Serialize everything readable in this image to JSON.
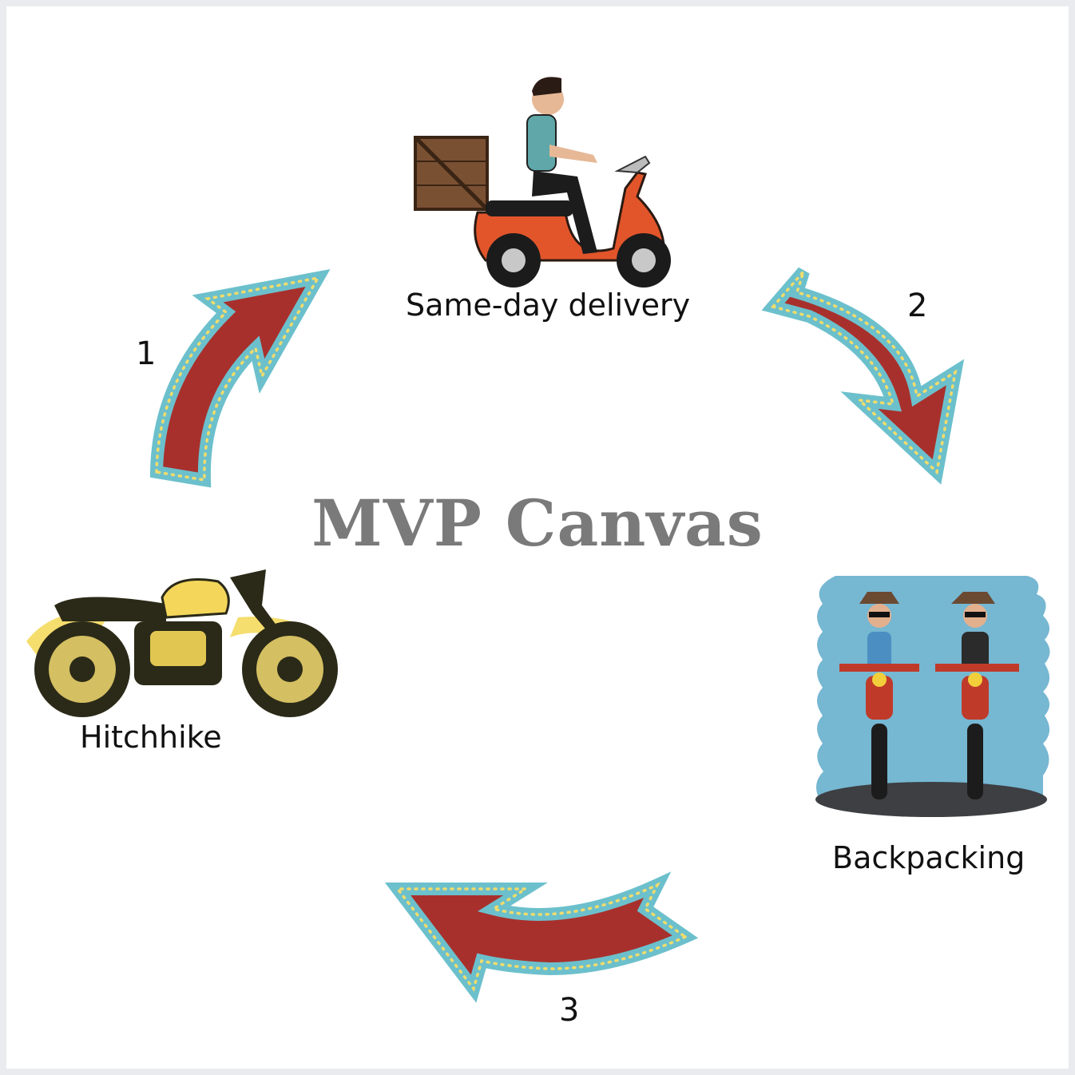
{
  "title": "MVP Canvas",
  "steps": {
    "top": {
      "label": "Same-day delivery",
      "icon": "delivery-scooter-illustration"
    },
    "right": {
      "label": "Backpacking",
      "icon": "bikers-couple-illustration"
    },
    "left": {
      "label": "Hitchhike",
      "icon": "yellow-motorcycle-illustration"
    }
  },
  "arrows": [
    {
      "number": "1"
    },
    {
      "number": "2"
    },
    {
      "number": "3"
    }
  ],
  "colors": {
    "arrow_fill": "#a8302c",
    "arrow_border": "#6cc0cc",
    "arrow_dots": "#f2dc6b",
    "title": "#7a7a7a"
  }
}
